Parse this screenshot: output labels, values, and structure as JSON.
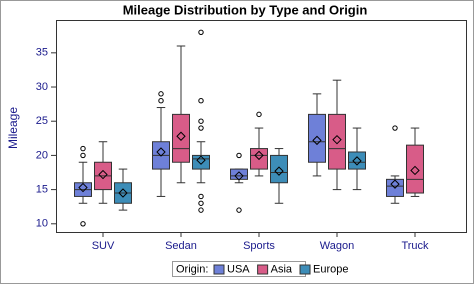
{
  "chart_data": {
    "type": "box",
    "title": "Mileage Distribution by Type and Origin",
    "y_label": "Mileage",
    "legend_title": "Origin:",
    "categories": [
      "SUV",
      "Sedan",
      "Sports",
      "Wagon",
      "Truck"
    ],
    "ylim": [
      8.8,
      39.8
    ],
    "yticks": [
      10,
      15,
      20,
      25,
      30,
      35
    ],
    "series": [
      {
        "name": "USA",
        "color": "#6e80d8",
        "low": [
          13,
          14,
          16,
          17,
          13
        ],
        "q1": [
          14,
          18,
          16.5,
          19,
          14
        ],
        "median": [
          15,
          20,
          17,
          22,
          15.5
        ],
        "q3": [
          16,
          22,
          18,
          26,
          16.5
        ],
        "high": [
          19,
          27,
          18,
          29,
          17
        ],
        "mean": [
          15.3,
          20.5,
          17,
          22.2,
          15.8
        ],
        "outliers": [
          [
            10,
            20,
            21
          ],
          [
            28,
            29
          ],
          [
            12,
            20
          ],
          [],
          [
            24
          ]
        ]
      },
      {
        "name": "Asia",
        "color": "#d85c88",
        "low": [
          13,
          16,
          17,
          15,
          14
        ],
        "q1": [
          15,
          19,
          18,
          18,
          14.5
        ],
        "median": [
          17,
          21,
          20,
          21,
          16.5
        ],
        "q3": [
          19,
          26,
          21,
          26,
          21.5
        ],
        "high": [
          22,
          36,
          24,
          31,
          24
        ],
        "mean": [
          17.2,
          22.8,
          20,
          22.3,
          17.8
        ],
        "outliers": [
          [],
          [],
          [
            26
          ],
          [],
          []
        ]
      },
      {
        "name": "Europe",
        "color": "#3d8db8",
        "low": [
          12,
          16,
          13,
          15,
          null
        ],
        "q1": [
          13,
          18,
          16,
          18,
          null
        ],
        "median": [
          14.5,
          19.5,
          17.5,
          19,
          null
        ],
        "q3": [
          16,
          20,
          20,
          20.5,
          null
        ],
        "high": [
          18,
          22,
          21,
          24,
          null
        ],
        "mean": [
          14.5,
          19.3,
          17.7,
          19.2,
          null
        ],
        "outliers": [
          [],
          [
            12,
            13,
            14,
            24,
            25,
            28,
            38
          ],
          [],
          [],
          []
        ]
      }
    ]
  }
}
